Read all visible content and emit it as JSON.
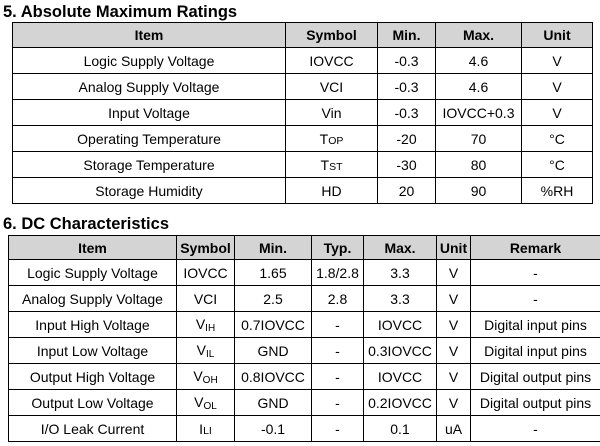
{
  "abs_max": {
    "title": "5. Absolute Maximum Ratings",
    "headers": [
      "Item",
      "Symbol",
      "Min.",
      "Max.",
      "Unit"
    ],
    "rows": [
      {
        "item": "Logic Supply Voltage",
        "symbol": "IOVCC",
        "min": "-0.3",
        "max": "4.6",
        "unit": "V"
      },
      {
        "item": "Analog Supply Voltage",
        "symbol": "VCI",
        "min": "-0.3",
        "max": "4.6",
        "unit": "V"
      },
      {
        "item": "Input Voltage",
        "symbol": "Vin",
        "min": "-0.3",
        "max": "IOVCC+0.3",
        "unit": "V"
      },
      {
        "item": "Operating Temperature",
        "symbol_main": "T",
        "symbol_sub": "OP",
        "min": "-20",
        "max": "70",
        "unit": "°C"
      },
      {
        "item": "Storage Temperature",
        "symbol_main": "T",
        "symbol_sub": "ST",
        "min": "-30",
        "max": "80",
        "unit": "°C"
      },
      {
        "item": "Storage Humidity",
        "symbol": "HD",
        "min": "20",
        "max": "90",
        "unit": "%RH"
      }
    ]
  },
  "dc": {
    "title": "6. DC Characteristics",
    "headers": [
      "Item",
      "Symbol",
      "Min.",
      "Typ.",
      "Max.",
      "Unit",
      "Remark"
    ],
    "rows": [
      {
        "item": "Logic Supply Voltage",
        "symbol": "IOVCC",
        "min": "1.65",
        "typ": "1.8/2.8",
        "max": "3.3",
        "unit": "V",
        "remark": "-"
      },
      {
        "item": "Analog Supply Voltage",
        "symbol": "VCI",
        "min": "2.5",
        "typ": "2.8",
        "max": "3.3",
        "unit": "V",
        "remark": "-"
      },
      {
        "item": "Input High Voltage",
        "symbol_main": "V",
        "symbol_sub": "IH",
        "min": "0.7IOVCC",
        "typ": "-",
        "max": "IOVCC",
        "unit": "V",
        "remark": "Digital input pins"
      },
      {
        "item": "Input Low Voltage",
        "symbol_main": "V",
        "symbol_sub": "IL",
        "min": "GND",
        "typ": "-",
        "max": "0.3IOVCC",
        "unit": "V",
        "remark": "Digital input pins"
      },
      {
        "item": "Output High Voltage",
        "symbol_main": "V",
        "symbol_sub": "OH",
        "min": "0.8IOVCC",
        "typ": "-",
        "max": "IOVCC",
        "unit": "V",
        "remark": "Digital output pins"
      },
      {
        "item": "Output Low Voltage",
        "symbol_main": "V",
        "symbol_sub": "OL",
        "min": "GND",
        "typ": "-",
        "max": "0.2IOVCC",
        "unit": "V",
        "remark": "Digital output pins"
      },
      {
        "item": "I/O Leak Current",
        "symbol_main": "I",
        "symbol_sub": "LI",
        "min": "-0.1",
        "typ": "-",
        "max": "0.1",
        "unit": "uA",
        "remark": "-"
      }
    ]
  }
}
